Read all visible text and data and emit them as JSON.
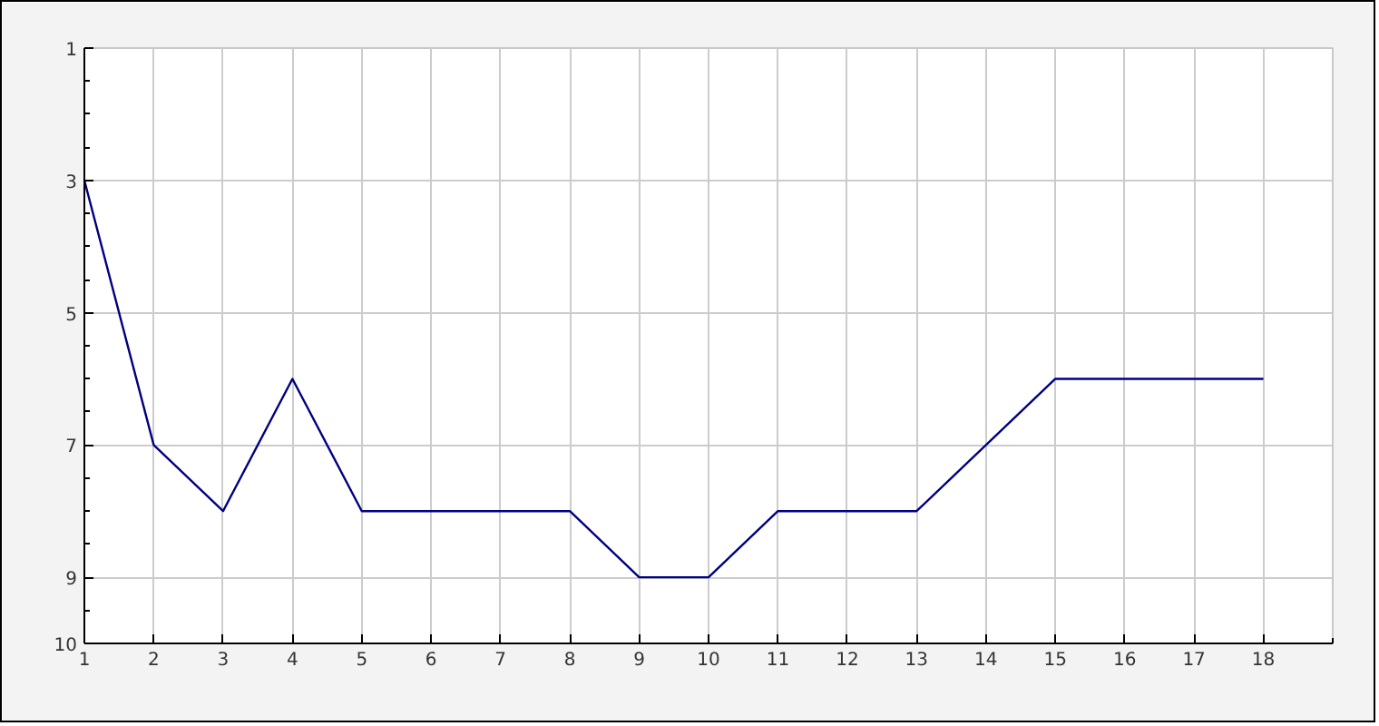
{
  "chart_data": {
    "type": "line",
    "x": [
      1,
      2,
      3,
      4,
      5,
      6,
      7,
      8,
      9,
      10,
      11,
      12,
      13,
      14,
      15,
      16,
      17,
      18
    ],
    "values": [
      3,
      7,
      8,
      6,
      8,
      8,
      8,
      8,
      9,
      9,
      8,
      8,
      8,
      7,
      6,
      6,
      6,
      6
    ],
    "color": "#000080",
    "xlim": [
      1,
      19
    ],
    "xticks": [
      1,
      2,
      3,
      4,
      5,
      6,
      7,
      8,
      9,
      10,
      11,
      12,
      13,
      14,
      15,
      16,
      17,
      18,
      {
        "value": 19,
        "label": null
      }
    ],
    "ylim": [
      10,
      1
    ],
    "yticks": [
      1,
      {
        "value": 1.5,
        "label": null
      },
      {
        "value": 2,
        "label": null
      },
      {
        "value": 2.5,
        "label": null
      },
      3,
      {
        "value": 3.5,
        "label": null
      },
      {
        "value": 4,
        "label": null
      },
      {
        "value": 4.5,
        "label": null
      },
      5,
      {
        "value": 5.5,
        "label": null
      },
      {
        "value": 6,
        "label": null
      },
      {
        "value": 6.5,
        "label": null
      },
      7,
      {
        "value": 7.5,
        "label": null
      },
      {
        "value": 8,
        "label": null
      },
      {
        "value": 8.5,
        "label": null
      },
      9,
      {
        "value": 9.5,
        "label": null
      },
      10
    ],
    "grid": true
  }
}
